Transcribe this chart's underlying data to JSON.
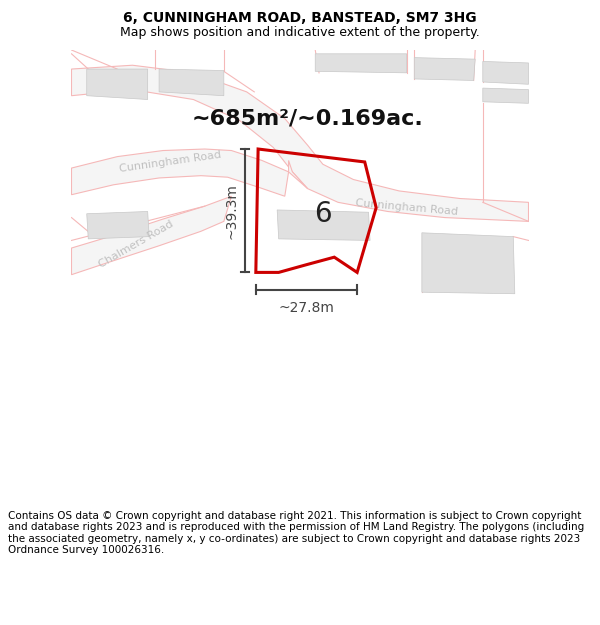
{
  "title": "6, CUNNINGHAM ROAD, BANSTEAD, SM7 3HG",
  "subtitle": "Map shows position and indicative extent of the property.",
  "area_text": "~685m²/~0.169ac.",
  "label_number": "6",
  "dim_width": "~27.8m",
  "dim_height": "~39.3m",
  "footer": "Contains OS data © Crown copyright and database right 2021. This information is subject to Crown copyright and database rights 2023 and is reproduced with the permission of HM Land Registry. The polygons (including the associated geometry, namely x, y co-ordinates) are subject to Crown copyright and database rights 2023 Ordnance Survey 100026316.",
  "bg_color": "#ffffff",
  "road_fill": "#f5f5f5",
  "road_stroke": "#f5b8b8",
  "building_fill": "#e0e0e0",
  "building_stroke": "#c8c8c8",
  "plot_stroke": "#cc0000",
  "dim_color": "#444444",
  "road_label_color": "#c0c0c0",
  "title_color": "#000000",
  "footer_color": "#000000",
  "figsize": [
    6.0,
    6.25
  ],
  "dpi": 100,
  "title_fontsize": 10,
  "subtitle_fontsize": 9,
  "area_fontsize": 16,
  "number_fontsize": 20,
  "road_label_fontsize": 8,
  "dim_fontsize": 10,
  "footer_fontsize": 7.5
}
